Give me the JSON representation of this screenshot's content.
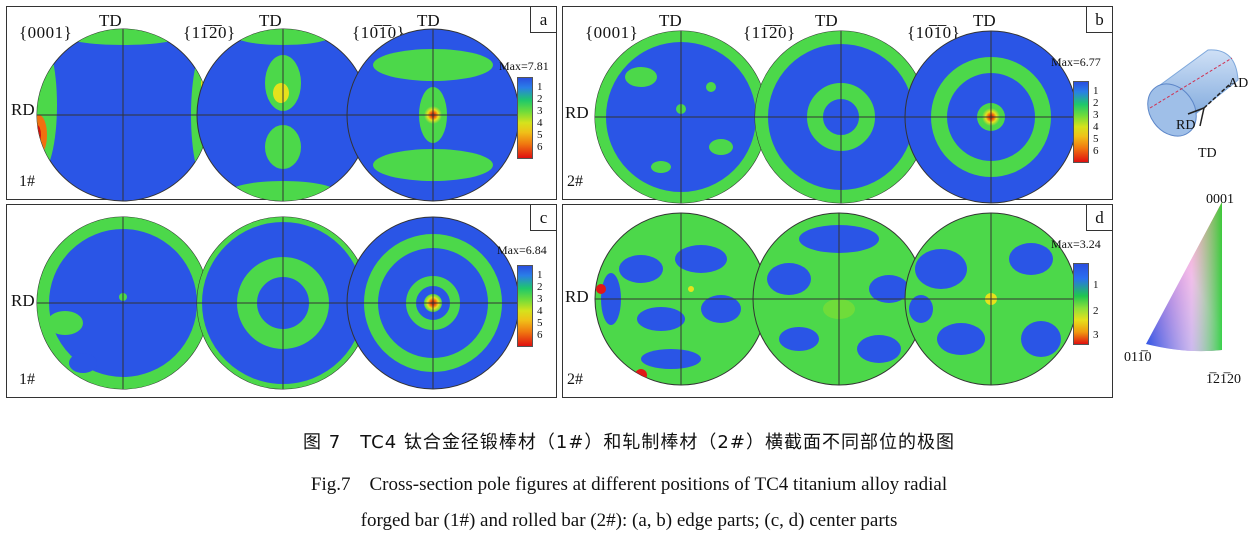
{
  "poles": [
    "{0001}",
    "{11Ą2̅0}",
    "{10Ą1̅0}"
  ],
  "pole_display": [
    "{0001}",
    "{11̅2̅0}",
    "{10̅1̅0}"
  ],
  "td": "TD",
  "rd": "RD",
  "panels": {
    "a": {
      "letter": "a",
      "sample": "1#",
      "max": "Max=7.81",
      "ticks": [
        "1",
        "2",
        "3",
        "4",
        "5",
        "6"
      ]
    },
    "b": {
      "letter": "b",
      "sample": "2#",
      "max": "Max=6.77",
      "ticks": [
        "1",
        "2",
        "3",
        "4",
        "5",
        "6"
      ]
    },
    "c": {
      "letter": "c",
      "sample": "1#",
      "max": "Max=6.84",
      "ticks": [
        "1",
        "2",
        "3",
        "4",
        "5",
        "6"
      ]
    },
    "d": {
      "letter": "d",
      "sample": "2#",
      "max": "Max=3.24",
      "ticks": [
        "1",
        "2",
        "3"
      ]
    }
  },
  "cylinder": {
    "ad": "AD",
    "rd": "RD",
    "td": "TD"
  },
  "triangle": {
    "top": "0001",
    "left": "01̅1̅0",
    "right": "̅1̅12̅1̅0"
  },
  "triangle_display": {
    "top": "0001",
    "left": "011̅0",
    "right": "1̅21̅20"
  },
  "caption": {
    "cn": "图 7　TC4 钛合金径锻棒材（1#）和轧制棒材（2#）横截面不同部位的极图",
    "en1": "Fig.7　Cross-section pole figures at different positions of TC4 titanium alloy radial",
    "en2": "forged bar (1#) and rolled bar (2#): (a, b) edge parts; (c, d) center parts"
  },
  "colors": {
    "blue": "#2a55e6",
    "green": "#4cd84a",
    "yellow": "#e6e21c",
    "red": "#e01818"
  }
}
